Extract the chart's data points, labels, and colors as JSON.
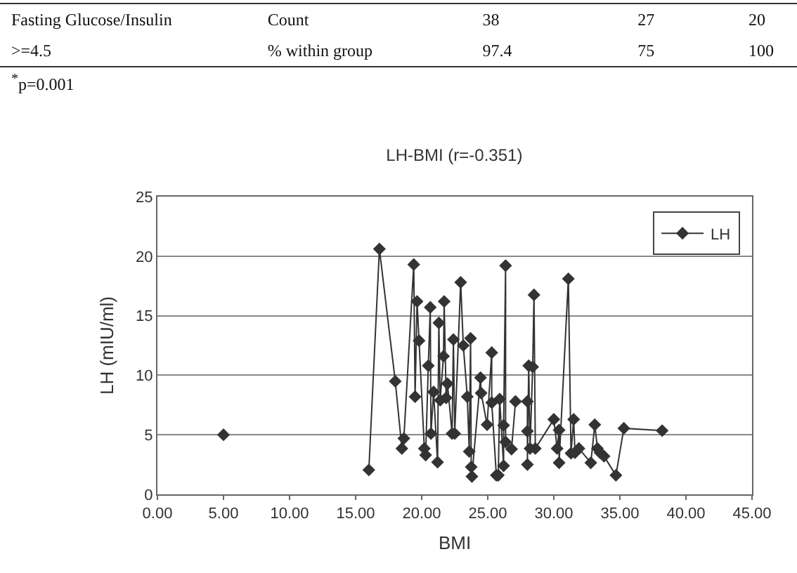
{
  "chart_data": {
    "type": "line",
    "title": "LH-BMI (r=-0.351)",
    "xlabel": "BMI",
    "ylabel": "LH (mIU/ml)",
    "annotations": [
      "Fasting Glucose/Insulin",
      "Count",
      "38",
      "27",
      "20",
      ">=4.5",
      "% within group",
      "97.4",
      "75",
      "100",
      "$^{*}$p=0.001"
    ],
    "x": [
      16.0,
      16.8,
      18.0,
      18.5,
      18.65,
      19.4,
      19.5,
      19.65,
      19.8,
      20.2,
      20.3,
      20.5,
      20.65,
      20.7,
      20.9,
      21.2,
      21.3,
      21.4,
      21.65,
      21.7,
      21.85,
      21.95,
      22.3,
      22.4,
      22.5,
      22.95,
      23.15,
      23.45,
      23.6,
      23.7,
      23.75,
      23.8,
      24.45,
      24.5,
      24.95,
      25.3,
      25.3,
      25.65,
      25.8,
      25.9,
      26.2,
      26.2,
      26.35,
      26.35,
      26.8,
      27.1,
      28.0,
      28.0,
      28.0,
      28.1,
      28.2,
      28.4,
      28.5,
      28.6,
      30.0,
      30.25,
      30.4,
      30.4,
      31.1,
      31.3,
      31.5,
      31.6,
      31.9,
      32.8,
      33.1,
      33.3,
      33.5,
      33.8,
      34.7,
      35.3,
      38.2
    ],
    "series": [
      {
        "name": "LH",
        "color": "#333333",
        "values": [
          2.05,
          20.6,
          9.5,
          3.85,
          4.7,
          19.3,
          8.2,
          16.2,
          12.9,
          3.85,
          3.3,
          10.8,
          15.7,
          5.1,
          8.6,
          2.7,
          14.4,
          7.9,
          11.6,
          16.2,
          8.1,
          9.3,
          5.1,
          13.0,
          5.1,
          17.8,
          12.5,
          8.2,
          3.6,
          13.1,
          2.3,
          1.5,
          9.8,
          8.5,
          5.85,
          11.9,
          7.7,
          1.6,
          1.6,
          8.0,
          2.4,
          5.8,
          19.2,
          4.4,
          3.8,
          7.8,
          7.8,
          5.3,
          2.5,
          10.8,
          3.85,
          10.7,
          16.75,
          3.85,
          6.3,
          3.85,
          5.4,
          2.65,
          18.1,
          3.45,
          6.3,
          3.5,
          3.85,
          2.65,
          5.85,
          3.85,
          3.5,
          3.2,
          1.6,
          5.55,
          5.35
        ]
      },
      {
        "color": "#333333",
        "x": [
          5.0
        ],
        "values": [
          5.0
        ]
      }
    ],
    "xlim": [
      0,
      45
    ],
    "xticks": [
      {
        "value": 0,
        "label": "0.00"
      },
      {
        "value": 5,
        "label": "5.00"
      },
      {
        "value": 10,
        "label": "10.00"
      },
      {
        "value": 15,
        "label": "15.00"
      },
      {
        "value": 20,
        "label": "20.00"
      },
      {
        "value": 25,
        "label": "25.00"
      },
      {
        "value": 30,
        "label": "30.00"
      },
      {
        "value": 35,
        "label": "35.00"
      },
      {
        "value": 40,
        "label": "40.00"
      },
      {
        "value": 45,
        "label": "45.00"
      }
    ],
    "ylim": [
      0,
      25
    ],
    "yticks": [
      0,
      5,
      10,
      15,
      20,
      25
    ],
    "grid": "y",
    "legend": "top right",
    "marker": "diamond",
    "line_style": "solid"
  }
}
